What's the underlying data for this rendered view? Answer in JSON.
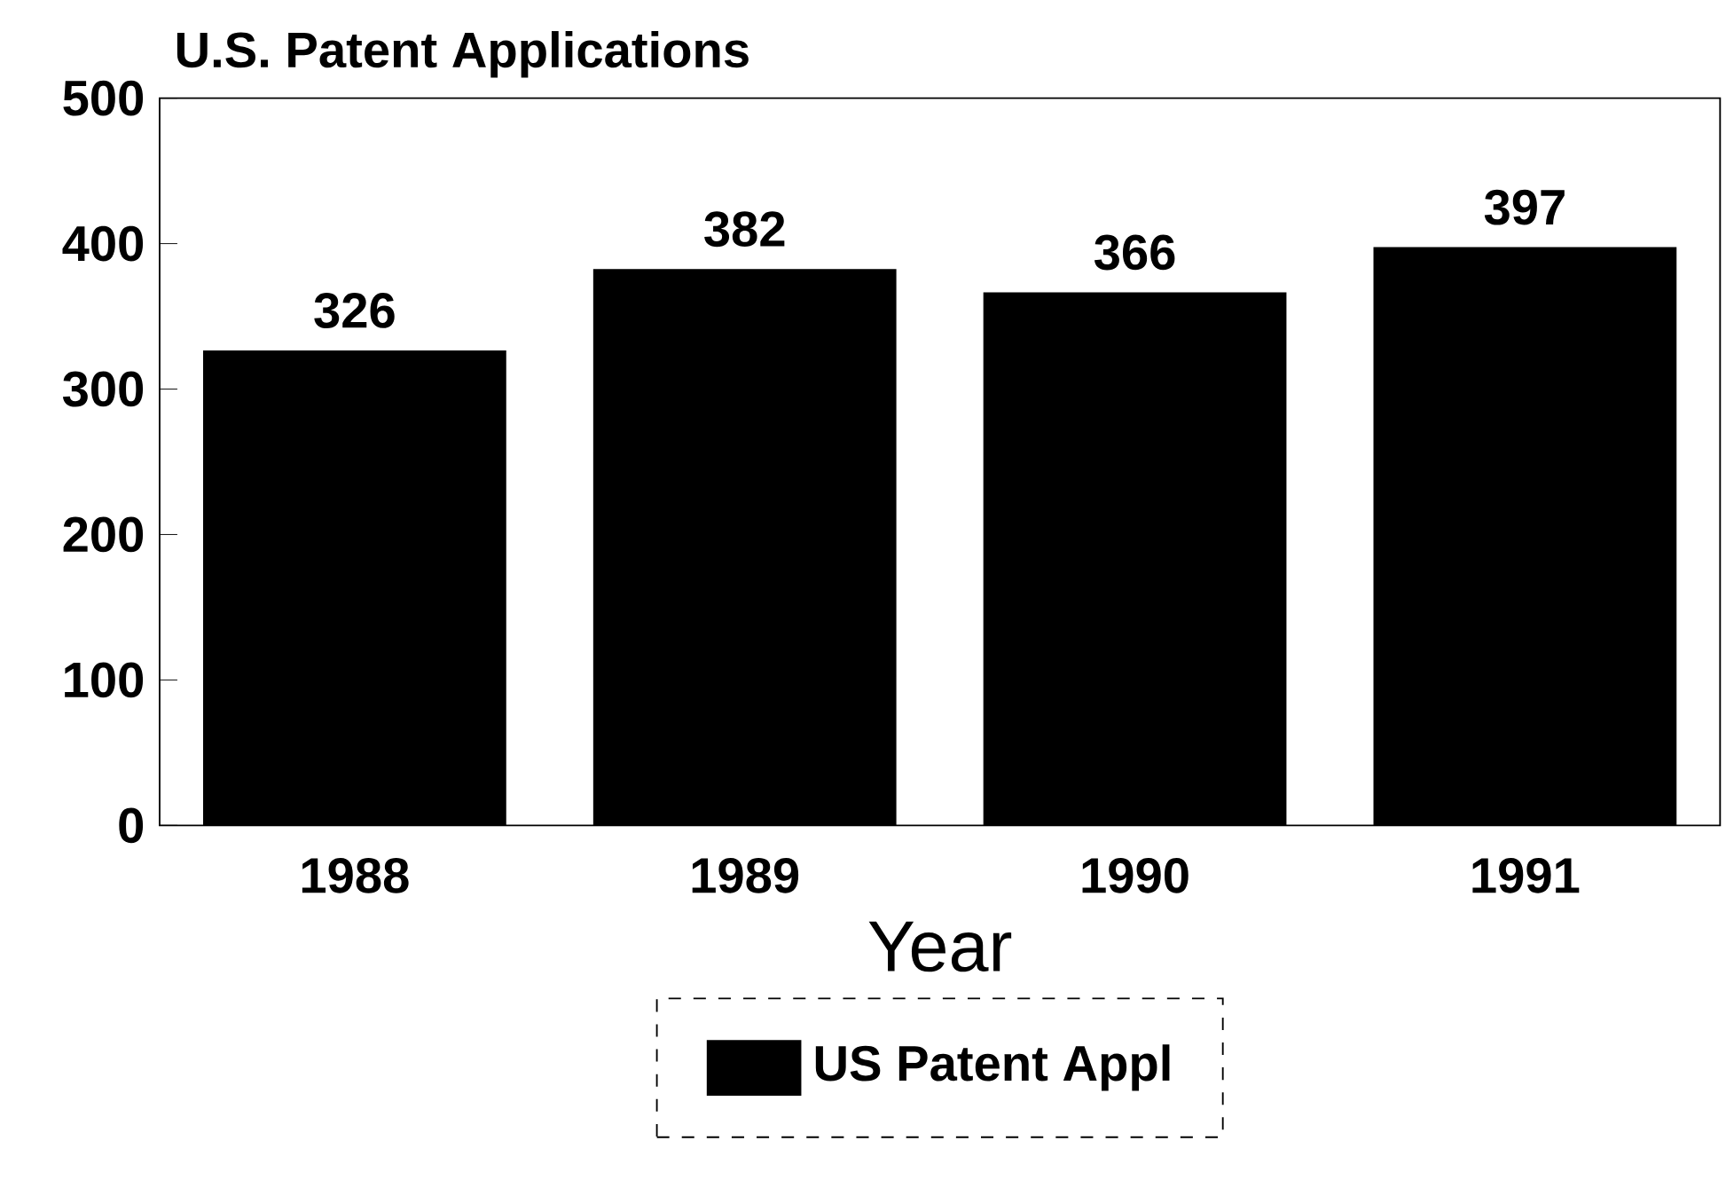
{
  "chart_data": {
    "type": "bar",
    "title": "U.S. Patent Applications",
    "xlabel": "Year",
    "categories": [
      "1988",
      "1989",
      "1990",
      "1991"
    ],
    "series": [
      {
        "name": "US Patent Appl",
        "color": "#000000",
        "values": [
          326,
          382,
          366,
          397
        ]
      }
    ],
    "ylim": [
      0,
      500
    ],
    "yticks": [
      0,
      100,
      200,
      300,
      400,
      500
    ],
    "data_labels": true,
    "legend": "bottom"
  }
}
